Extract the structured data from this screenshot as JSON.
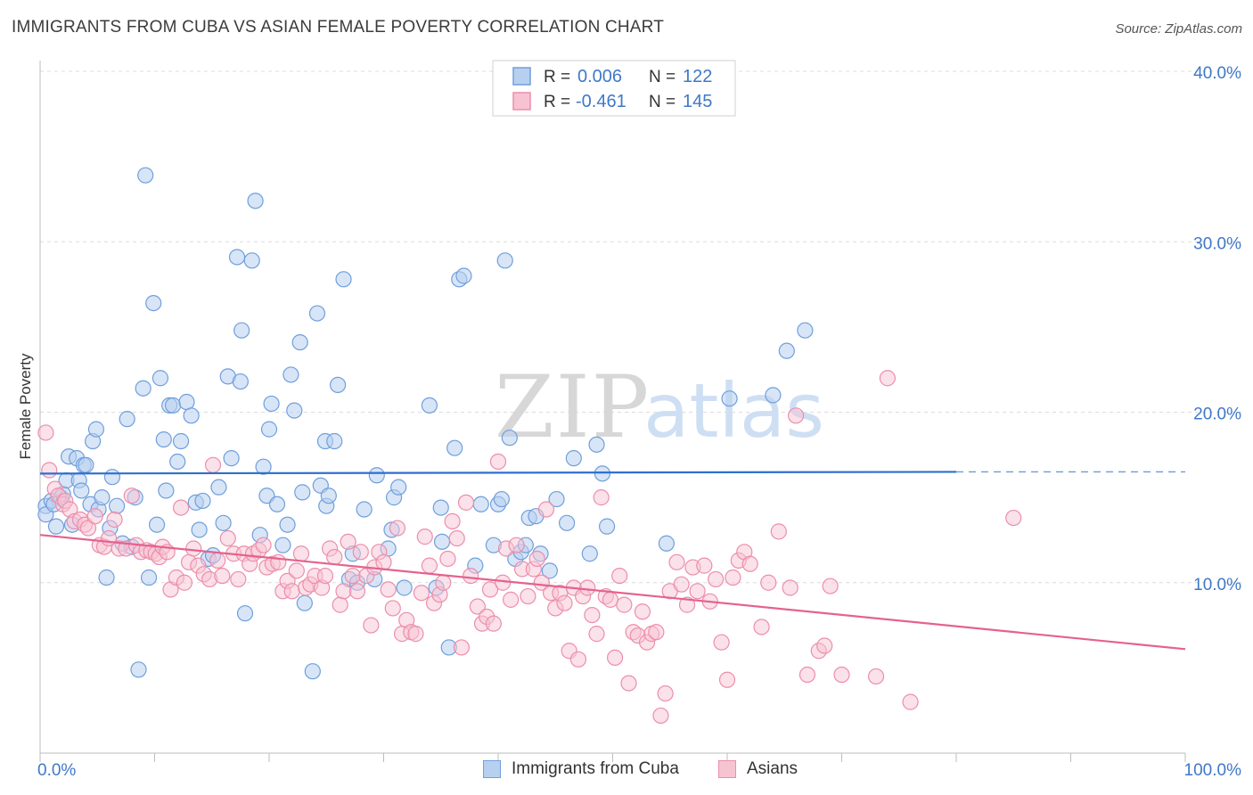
{
  "header": {
    "title": "IMMIGRANTS FROM CUBA VS ASIAN FEMALE POVERTY CORRELATION CHART",
    "source": "Source: ZipAtlas.com"
  },
  "watermark": {
    "zip": "ZIP",
    "atlas": "atlas"
  },
  "colors": {
    "blue_fill": "#b8d0f0",
    "blue_stroke": "#6f9fdc",
    "blue_line": "#2f6fcf",
    "pink_fill": "#f7c3d3",
    "pink_stroke": "#ec8eab",
    "pink_line": "#e4628f",
    "axis_label": "#3f78c8",
    "grid": "#dcdcdc"
  },
  "legend_top": {
    "rows": [
      {
        "r_label": "R = ",
        "r_value": "0.006",
        "n_label": "N = ",
        "n_value": "122"
      },
      {
        "r_label": "R = ",
        "r_value": "-0.461",
        "n_label": "N = ",
        "n_value": "145"
      }
    ]
  },
  "legend_bottom": {
    "items": [
      "Immigrants from Cuba",
      "Asians"
    ]
  },
  "chart_data": {
    "type": "scatter",
    "title": "IMMIGRANTS FROM CUBA VS ASIAN FEMALE POVERTY CORRELATION CHART",
    "xlabel": "",
    "ylabel": "Female Poverty",
    "xlim": [
      0,
      100
    ],
    "ylim": [
      0,
      40
    ],
    "x_tick_labels": [
      "0.0%",
      "100.0%"
    ],
    "y_ticks": [
      10,
      20,
      30,
      40
    ],
    "y_tick_labels": [
      "10.0%",
      "20.0%",
      "30.0%",
      "40.0%"
    ],
    "grid": true,
    "legend": "top-center",
    "series": [
      {
        "name": "Immigrants from Cuba",
        "R": 0.006,
        "N": 122,
        "trend": {
          "x0": 0,
          "y0": 16.4,
          "x1": 80,
          "y1": 16.5,
          "dashed_to": 100,
          "y_dashed_end": 16.5
        },
        "points": [
          [
            0.5,
            14.5
          ],
          [
            0.5,
            14.0
          ],
          [
            1.0,
            14.8
          ],
          [
            1.2,
            14.6
          ],
          [
            1.4,
            13.3
          ],
          [
            1.8,
            15.0
          ],
          [
            2.0,
            15.2
          ],
          [
            2.3,
            16.0
          ],
          [
            2.5,
            17.4
          ],
          [
            2.8,
            13.4
          ],
          [
            3.2,
            17.3
          ],
          [
            3.4,
            16.0
          ],
          [
            3.6,
            15.4
          ],
          [
            3.8,
            16.9
          ],
          [
            4.0,
            16.9
          ],
          [
            4.4,
            14.6
          ],
          [
            4.6,
            18.3
          ],
          [
            4.9,
            19.0
          ],
          [
            5.1,
            14.3
          ],
          [
            5.4,
            15.0
          ],
          [
            5.8,
            10.3
          ],
          [
            6.1,
            13.2
          ],
          [
            6.3,
            16.2
          ],
          [
            6.7,
            14.5
          ],
          [
            7.2,
            12.3
          ],
          [
            7.6,
            19.6
          ],
          [
            8.0,
            12.1
          ],
          [
            8.3,
            15.0
          ],
          [
            8.6,
            4.9
          ],
          [
            9.0,
            21.4
          ],
          [
            9.2,
            33.9
          ],
          [
            9.5,
            10.3
          ],
          [
            9.9,
            26.4
          ],
          [
            10.2,
            13.4
          ],
          [
            10.5,
            22.0
          ],
          [
            10.8,
            18.4
          ],
          [
            11.0,
            15.4
          ],
          [
            11.3,
            20.4
          ],
          [
            11.6,
            20.4
          ],
          [
            12.0,
            17.1
          ],
          [
            12.3,
            18.3
          ],
          [
            12.8,
            20.6
          ],
          [
            13.2,
            19.8
          ],
          [
            13.6,
            14.7
          ],
          [
            13.9,
            13.1
          ],
          [
            14.2,
            14.8
          ],
          [
            14.7,
            11.4
          ],
          [
            15.1,
            11.6
          ],
          [
            15.6,
            15.6
          ],
          [
            16.0,
            13.5
          ],
          [
            16.4,
            22.1
          ],
          [
            16.7,
            17.3
          ],
          [
            17.2,
            29.1
          ],
          [
            17.5,
            21.8
          ],
          [
            17.6,
            24.8
          ],
          [
            17.9,
            8.2
          ],
          [
            18.5,
            28.9
          ],
          [
            18.8,
            32.4
          ],
          [
            19.2,
            12.8
          ],
          [
            19.5,
            16.8
          ],
          [
            19.8,
            15.1
          ],
          [
            20.0,
            19.0
          ],
          [
            20.2,
            20.5
          ],
          [
            20.7,
            14.6
          ],
          [
            21.2,
            12.2
          ],
          [
            21.6,
            13.4
          ],
          [
            21.9,
            22.2
          ],
          [
            22.2,
            20.1
          ],
          [
            22.7,
            24.1
          ],
          [
            23.1,
            8.8
          ],
          [
            22.9,
            15.3
          ],
          [
            23.8,
            4.8
          ],
          [
            24.2,
            25.8
          ],
          [
            24.5,
            15.7
          ],
          [
            24.9,
            18.3
          ],
          [
            25.0,
            14.5
          ],
          [
            25.2,
            15.1
          ],
          [
            25.7,
            18.3
          ],
          [
            26.0,
            21.6
          ],
          [
            26.5,
            27.8
          ],
          [
            27.0,
            10.2
          ],
          [
            27.3,
            11.7
          ],
          [
            27.7,
            10.0
          ],
          [
            28.3,
            14.3
          ],
          [
            29.2,
            10.2
          ],
          [
            29.4,
            16.3
          ],
          [
            30.4,
            12.0
          ],
          [
            30.7,
            13.1
          ],
          [
            30.9,
            15.0
          ],
          [
            31.3,
            15.6
          ],
          [
            31.8,
            9.7
          ],
          [
            34.0,
            20.4
          ],
          [
            34.6,
            9.7
          ],
          [
            35.0,
            14.4
          ],
          [
            35.1,
            12.4
          ],
          [
            35.7,
            6.2
          ],
          [
            36.2,
            17.9
          ],
          [
            36.6,
            27.8
          ],
          [
            37.0,
            28.0
          ],
          [
            38.0,
            11.0
          ],
          [
            38.5,
            14.6
          ],
          [
            39.6,
            12.2
          ],
          [
            40.0,
            14.6
          ],
          [
            40.3,
            14.9
          ],
          [
            40.6,
            28.9
          ],
          [
            41.0,
            18.5
          ],
          [
            41.5,
            11.4
          ],
          [
            42.0,
            11.8
          ],
          [
            42.4,
            12.2
          ],
          [
            42.7,
            13.8
          ],
          [
            43.3,
            13.9
          ],
          [
            43.7,
            11.7
          ],
          [
            44.5,
            10.7
          ],
          [
            45.1,
            14.9
          ],
          [
            46.0,
            13.5
          ],
          [
            46.6,
            17.3
          ],
          [
            48.0,
            11.7
          ],
          [
            48.6,
            18.1
          ],
          [
            49.1,
            16.4
          ],
          [
            49.5,
            13.3
          ],
          [
            54.7,
            12.3
          ],
          [
            60.2,
            20.8
          ],
          [
            64.0,
            21.0
          ],
          [
            65.2,
            23.6
          ],
          [
            66.8,
            24.8
          ]
        ]
      },
      {
        "name": "Asians",
        "R": -0.461,
        "N": 145,
        "trend": {
          "x0": 0,
          "y0": 12.8,
          "x1": 100,
          "y1": 6.1
        },
        "points": [
          [
            0.5,
            18.8
          ],
          [
            0.8,
            16.6
          ],
          [
            1.3,
            15.5
          ],
          [
            1.6,
            15.1
          ],
          [
            2.0,
            14.6
          ],
          [
            2.2,
            14.8
          ],
          [
            2.6,
            14.3
          ],
          [
            3.0,
            13.6
          ],
          [
            3.5,
            13.7
          ],
          [
            3.9,
            13.4
          ],
          [
            4.2,
            13.2
          ],
          [
            4.8,
            13.9
          ],
          [
            5.2,
            12.2
          ],
          [
            5.6,
            12.1
          ],
          [
            6.0,
            12.6
          ],
          [
            6.5,
            13.7
          ],
          [
            6.9,
            12.0
          ],
          [
            7.5,
            12.0
          ],
          [
            8.0,
            15.1
          ],
          [
            8.4,
            12.2
          ],
          [
            8.8,
            11.8
          ],
          [
            9.3,
            11.9
          ],
          [
            9.7,
            11.8
          ],
          [
            10.1,
            11.7
          ],
          [
            10.4,
            11.5
          ],
          [
            10.7,
            12.1
          ],
          [
            11.1,
            11.8
          ],
          [
            11.4,
            9.6
          ],
          [
            11.9,
            10.3
          ],
          [
            12.3,
            14.4
          ],
          [
            12.6,
            10.0
          ],
          [
            13.0,
            11.2
          ],
          [
            13.4,
            12.0
          ],
          [
            13.8,
            11.0
          ],
          [
            14.3,
            10.5
          ],
          [
            14.8,
            10.2
          ],
          [
            15.1,
            16.9
          ],
          [
            15.5,
            11.3
          ],
          [
            15.9,
            10.4
          ],
          [
            16.4,
            12.6
          ],
          [
            16.9,
            11.7
          ],
          [
            17.3,
            10.2
          ],
          [
            17.8,
            11.7
          ],
          [
            18.3,
            11.1
          ],
          [
            18.6,
            11.7
          ],
          [
            19.1,
            11.9
          ],
          [
            19.5,
            12.2
          ],
          [
            19.8,
            10.9
          ],
          [
            20.3,
            11.1
          ],
          [
            20.8,
            11.2
          ],
          [
            21.2,
            9.5
          ],
          [
            21.6,
            10.1
          ],
          [
            22.0,
            9.5
          ],
          [
            22.4,
            10.7
          ],
          [
            22.8,
            11.7
          ],
          [
            23.2,
            9.7
          ],
          [
            23.6,
            9.9
          ],
          [
            24.0,
            10.4
          ],
          [
            24.6,
            9.7
          ],
          [
            24.9,
            10.4
          ],
          [
            25.3,
            12.0
          ],
          [
            25.7,
            11.5
          ],
          [
            26.2,
            8.7
          ],
          [
            26.5,
            9.5
          ],
          [
            26.9,
            12.4
          ],
          [
            27.3,
            10.4
          ],
          [
            27.7,
            9.5
          ],
          [
            28.0,
            11.8
          ],
          [
            28.5,
            10.4
          ],
          [
            28.9,
            7.5
          ],
          [
            29.2,
            10.9
          ],
          [
            29.6,
            11.8
          ],
          [
            30.0,
            11.2
          ],
          [
            30.4,
            9.6
          ],
          [
            30.8,
            8.5
          ],
          [
            31.2,
            13.2
          ],
          [
            31.6,
            7.0
          ],
          [
            32.0,
            7.8
          ],
          [
            32.4,
            7.1
          ],
          [
            32.8,
            7.0
          ],
          [
            33.3,
            9.4
          ],
          [
            33.6,
            12.7
          ],
          [
            34.0,
            11.0
          ],
          [
            34.4,
            8.8
          ],
          [
            34.9,
            9.3
          ],
          [
            35.2,
            10.0
          ],
          [
            35.6,
            11.4
          ],
          [
            36.0,
            13.6
          ],
          [
            36.4,
            12.6
          ],
          [
            36.8,
            6.2
          ],
          [
            37.2,
            14.7
          ],
          [
            37.6,
            10.4
          ],
          [
            38.2,
            8.6
          ],
          [
            38.6,
            7.6
          ],
          [
            39.0,
            8.0
          ],
          [
            39.3,
            9.6
          ],
          [
            39.6,
            7.6
          ],
          [
            40.0,
            17.1
          ],
          [
            40.4,
            10.0
          ],
          [
            40.7,
            12.0
          ],
          [
            41.1,
            9.0
          ],
          [
            41.6,
            12.2
          ],
          [
            42.1,
            10.8
          ],
          [
            42.6,
            9.2
          ],
          [
            43.1,
            10.8
          ],
          [
            43.4,
            11.4
          ],
          [
            43.8,
            10.0
          ],
          [
            44.2,
            14.3
          ],
          [
            44.6,
            9.4
          ],
          [
            45.0,
            8.5
          ],
          [
            45.4,
            9.4
          ],
          [
            45.8,
            8.8
          ],
          [
            46.2,
            6.0
          ],
          [
            46.6,
            9.7
          ],
          [
            47.0,
            5.5
          ],
          [
            47.4,
            9.2
          ],
          [
            47.8,
            9.7
          ],
          [
            48.2,
            8.1
          ],
          [
            48.6,
            7.0
          ],
          [
            49.0,
            15.0
          ],
          [
            49.4,
            9.2
          ],
          [
            49.8,
            9.0
          ],
          [
            50.2,
            5.6
          ],
          [
            50.6,
            10.4
          ],
          [
            51.0,
            8.7
          ],
          [
            51.4,
            4.1
          ],
          [
            51.8,
            7.1
          ],
          [
            52.2,
            6.9
          ],
          [
            52.6,
            8.3
          ],
          [
            53.0,
            6.5
          ],
          [
            53.4,
            7.0
          ],
          [
            53.8,
            7.1
          ],
          [
            54.2,
            2.2
          ],
          [
            54.6,
            3.5
          ],
          [
            55.0,
            9.5
          ],
          [
            55.6,
            11.2
          ],
          [
            56.0,
            9.9
          ],
          [
            56.5,
            8.7
          ],
          [
            57.0,
            10.9
          ],
          [
            57.4,
            9.5
          ],
          [
            58.0,
            11.0
          ],
          [
            58.5,
            8.9
          ],
          [
            59.0,
            10.2
          ],
          [
            59.5,
            6.5
          ],
          [
            60.0,
            4.3
          ],
          [
            60.5,
            10.3
          ],
          [
            61.0,
            11.3
          ],
          [
            61.5,
            11.8
          ],
          [
            62.0,
            11.1
          ],
          [
            63.0,
            7.4
          ],
          [
            63.6,
            10.0
          ],
          [
            64.5,
            13.0
          ],
          [
            65.5,
            9.7
          ],
          [
            66.0,
            19.8
          ],
          [
            67.0,
            4.6
          ],
          [
            68.0,
            6.0
          ],
          [
            68.5,
            6.3
          ],
          [
            69.0,
            9.8
          ],
          [
            70.0,
            4.6
          ],
          [
            73.0,
            4.5
          ],
          [
            74.0,
            22.0
          ],
          [
            76.0,
            3.0
          ],
          [
            85.0,
            13.8
          ]
        ]
      }
    ]
  }
}
